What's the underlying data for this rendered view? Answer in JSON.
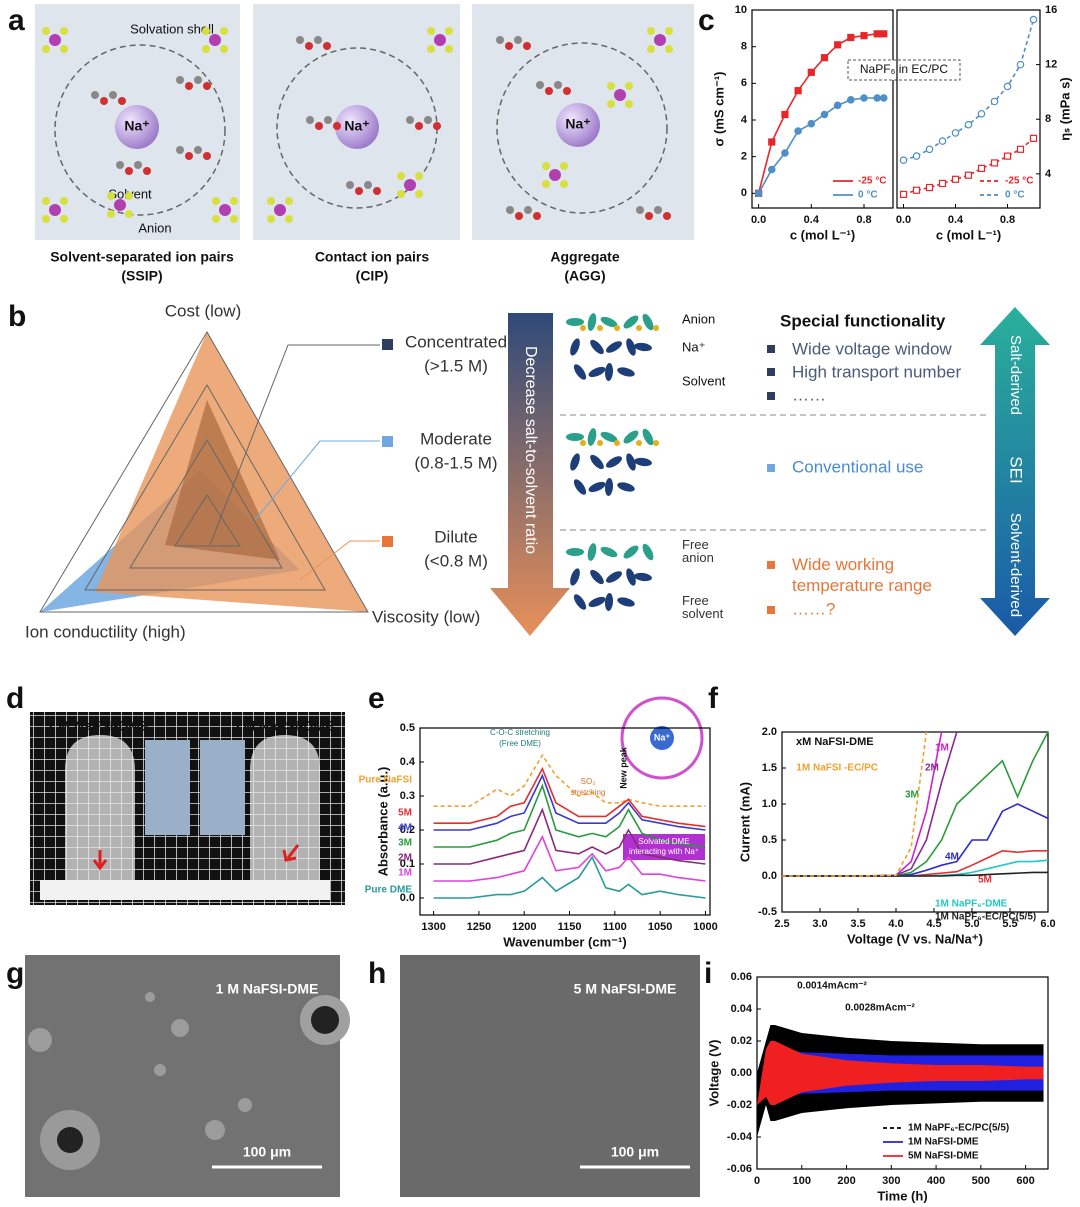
{
  "panel_a": {
    "label": "a",
    "solvation_shell": "Solvation shell",
    "solvent": "Solvent",
    "anion": "Anion",
    "cation": "Na⁺",
    "captions": [
      [
        "Solvent-separated ion pairs",
        "(SSIP)"
      ],
      [
        "Contact ion pairs",
        "(CIP)"
      ],
      [
        "Aggregate",
        "(AGG)"
      ]
    ]
  },
  "panel_b": {
    "label": "b",
    "axes": [
      "Cost (low)",
      "Ion conductility (high)",
      "Viscosity (low)"
    ],
    "levels": [
      {
        "name": "Concentrated",
        "range": "(>1.5 M)"
      },
      {
        "name": "Moderate",
        "range": "(0.8-1.5 M)"
      },
      {
        "name": "Dilute",
        "range": "(<0.8 M)"
      }
    ],
    "arrow": "Decrease salt-to-solvent ratio",
    "cluster_labels": [
      "Anion",
      "Na⁺",
      "Solvent",
      "Free anion",
      "Free solvent"
    ],
    "functionality_title": "Special functionality",
    "functionality": [
      [
        "Wide voltage window",
        "High transport number",
        "……"
      ],
      [
        "Conventional use"
      ],
      [
        "Wide working temperature range",
        "……?"
      ]
    ],
    "sei": [
      "Salt-derived",
      "SEI",
      "Solvent-derived"
    ]
  },
  "panel_d": {
    "label": "d",
    "samples": [
      "1 M NaFSI-DME",
      "5 M NaFSI-DME"
    ]
  },
  "panel_g": {
    "label": "g",
    "sample": "1 M NaFSI-DME",
    "scale": "100 μm"
  },
  "panel_h": {
    "label": "h",
    "sample": "5 M NaFSI-DME",
    "scale": "100 μm"
  },
  "chart_data": [
    {
      "type": "line",
      "panel_label": "c",
      "xlabel": "c (mol L⁻¹)",
      "ylabel": "σ (mS cm⁻¹)",
      "annotation": "NaPF₆ in EC/PC",
      "x": [
        0,
        0.1,
        0.2,
        0.3,
        0.4,
        0.5,
        0.6,
        0.7,
        0.8,
        0.9,
        0.95
      ],
      "xlim": [
        -0.05,
        1.02
      ],
      "xticks": [
        {
          "value": 0,
          "label": "0.0"
        },
        0.4,
        0.8
      ],
      "ylim": [
        -0.8,
        10
      ],
      "yticks": [
        0,
        2,
        4,
        6,
        8,
        10
      ],
      "legend": "lower right",
      "series": [
        {
          "name": "-25 °C",
          "color": "#e8262a",
          "marker": "square",
          "filled": true,
          "values": [
            0,
            2.8,
            4.3,
            5.6,
            6.6,
            7.4,
            8.1,
            8.5,
            8.6,
            8.7,
            8.7
          ]
        },
        {
          "name": "0 °C",
          "color": "#4f8fc6",
          "marker": "circle",
          "filled": true,
          "values": [
            0,
            1.3,
            2.2,
            3.4,
            3.8,
            4.3,
            4.8,
            5.1,
            5.2,
            5.2,
            5.2
          ]
        }
      ]
    },
    {
      "type": "line",
      "xlabel": "c (mol L⁻¹)",
      "y2label": "ηₛ (mPa s)",
      "x": [
        0,
        0.1,
        0.2,
        0.3,
        0.4,
        0.5,
        0.6,
        0.7,
        0.8,
        0.9,
        1.0
      ],
      "xlim": [
        -0.05,
        1.05
      ],
      "xticks": [
        {
          "value": 0,
          "label": "0.0"
        },
        0.4,
        0.8
      ],
      "y2lim": [
        1.5,
        16
      ],
      "y2ticks": [
        4,
        8,
        12,
        16
      ],
      "legend": "lower right",
      "series": [
        {
          "name": "-25 °C",
          "color": "#e8262a",
          "marker": "square",
          "filled": false,
          "dash": true,
          "axis": "y2",
          "values": [
            2.5,
            2.8,
            3.0,
            3.3,
            3.6,
            3.9,
            4.4,
            4.8,
            5.3,
            5.8,
            6.6
          ]
        },
        {
          "name": "0 °C",
          "color": "#4f8fc6",
          "marker": "circle",
          "filled": false,
          "dash": true,
          "axis": "y2",
          "values": [
            5.0,
            5.3,
            5.8,
            6.4,
            7.0,
            7.6,
            8.4,
            9.3,
            10.4,
            12.0,
            15.3
          ]
        }
      ]
    },
    {
      "type": "line",
      "panel_label": "e",
      "xlabel": "Wavenumber (cm⁻¹)",
      "ylabel": "Absorbance (a.u.)",
      "annotations": [
        "C-O-C stretching",
        "(Free DME)",
        "SO₂",
        "stretching",
        "New peak",
        "Solvated DME",
        "interacting with Na⁺",
        "Na⁺"
      ],
      "x": [
        1300,
        1260,
        1230,
        1215,
        1200,
        1180,
        1165,
        1140,
        1125,
        1110,
        1095,
        1085,
        1070,
        1050,
        1030,
        1000
      ],
      "xlim": [
        1315,
        995
      ],
      "xticks": [
        1300,
        1250,
        1200,
        1150,
        1100,
        1050,
        1000
      ],
      "ylim": [
        -0.05,
        0.5
      ],
      "yticks": [
        {
          "value": 0,
          "label": "0.0"
        },
        0.1,
        0.2,
        0.3,
        0.4,
        0.5
      ],
      "series": [
        {
          "name": "Pure NaFSI",
          "color": "#f0a030",
          "dash": true,
          "values": [
            0.27,
            0.27,
            0.32,
            0.3,
            0.33,
            0.42,
            0.36,
            0.3,
            0.31,
            0.28,
            0.28,
            0.29,
            0.28,
            0.27,
            0.27,
            0.27
          ]
        },
        {
          "name": "5M",
          "color": "#e03030",
          "values": [
            0.22,
            0.22,
            0.24,
            0.27,
            0.28,
            0.38,
            0.28,
            0.24,
            0.24,
            0.24,
            0.27,
            0.29,
            0.24,
            0.23,
            0.22,
            0.21
          ]
        },
        {
          "name": "4M",
          "color": "#3a3ad0",
          "values": [
            0.2,
            0.2,
            0.22,
            0.24,
            0.25,
            0.36,
            0.25,
            0.22,
            0.22,
            0.22,
            0.25,
            0.28,
            0.23,
            0.22,
            0.21,
            0.2
          ]
        },
        {
          "name": "3M",
          "color": "#2a9a3a",
          "values": [
            0.15,
            0.15,
            0.17,
            0.19,
            0.2,
            0.33,
            0.2,
            0.18,
            0.19,
            0.18,
            0.21,
            0.26,
            0.19,
            0.17,
            0.16,
            0.15
          ]
        },
        {
          "name": "2M",
          "color": "#8a2a7a",
          "values": [
            0.1,
            0.1,
            0.12,
            0.13,
            0.14,
            0.26,
            0.14,
            0.13,
            0.15,
            0.13,
            0.15,
            0.2,
            0.13,
            0.12,
            0.11,
            0.1
          ]
        },
        {
          "name": "1M",
          "color": "#e040e0",
          "values": [
            0.05,
            0.05,
            0.06,
            0.07,
            0.08,
            0.18,
            0.08,
            0.09,
            0.13,
            0.08,
            0.09,
            0.12,
            0.07,
            0.07,
            0.06,
            0.05
          ]
        },
        {
          "name": "Pure DME",
          "color": "#2a9a9a",
          "values": [
            0,
            0,
            0.01,
            0.01,
            0.02,
            0.06,
            0.02,
            0.06,
            0.12,
            0.03,
            0.02,
            0.04,
            0.01,
            0.02,
            0.01,
            0
          ]
        }
      ]
    },
    {
      "type": "line",
      "panel_label": "f",
      "title": "xM NaFSI-DME",
      "xlabel": "Voltage (V vs. Na/Na⁺)",
      "ylabel": "Current (mA)",
      "x": [
        2.5,
        3.0,
        3.5,
        4.0,
        4.2,
        4.4,
        4.6,
        4.8,
        5.0,
        5.2,
        5.4,
        5.6,
        5.8,
        6.0
      ],
      "xlim": [
        2.5,
        6.0
      ],
      "xticks": [
        2.5,
        {
          "value": 3,
          "label": "3.0"
        },
        3.5,
        {
          "value": 4,
          "label": "4.0"
        },
        4.5,
        {
          "value": 5,
          "label": "5.0"
        },
        5.5,
        {
          "value": 6,
          "label": "6.0"
        }
      ],
      "ylim": [
        -0.5,
        2.0
      ],
      "yticks": [
        -0.5,
        {
          "value": 0,
          "label": "0.0"
        },
        0.5,
        {
          "value": 1,
          "label": "1.0"
        },
        1.5,
        {
          "value": 2,
          "label": "2.0"
        }
      ],
      "series": [
        {
          "name": "1M",
          "color": "#d020d0",
          "values": [
            0,
            0,
            0,
            0.01,
            0.2,
            0.9,
            2.0,
            null,
            null,
            null,
            null,
            null,
            null,
            null
          ]
        },
        {
          "name": "2M",
          "color": "#8a2a9a",
          "values": [
            0,
            0,
            0,
            0.01,
            0.1,
            0.5,
            1.3,
            2.0,
            null,
            null,
            null,
            null,
            null,
            null
          ]
        },
        {
          "name": "3M",
          "color": "#2a9a3a",
          "values": [
            0,
            0,
            0,
            0,
            0.05,
            0.2,
            0.5,
            1.0,
            1.2,
            1.4,
            1.6,
            1.1,
            1.6,
            2.0
          ]
        },
        {
          "name": "4M",
          "color": "#2a2ad0",
          "values": [
            0,
            0,
            0,
            0,
            0.02,
            0.08,
            0.15,
            0.2,
            0.5,
            0.5,
            0.9,
            1.0,
            0.9,
            0.8
          ]
        },
        {
          "name": "5M",
          "color": "#e03030",
          "values": [
            0,
            0,
            0,
            0,
            0,
            0.02,
            0.04,
            0.06,
            0.15,
            0.25,
            0.35,
            0.33,
            0.35,
            0.35
          ]
        },
        {
          "name": "1M NaPF₆-DME",
          "color": "#20c8c8",
          "values": [
            0,
            0,
            0,
            0,
            0,
            0,
            0.01,
            0.02,
            0.05,
            0.1,
            0.15,
            0.2,
            0.2,
            0.22
          ]
        },
        {
          "name": "1M NaPF₆-EC/PC(5/5)",
          "color": "#222222",
          "values": [
            0,
            0,
            0,
            0,
            0,
            0,
            0,
            0.01,
            0.01,
            0.02,
            0.03,
            0.04,
            0.05,
            0.05
          ]
        },
        {
          "name": "1M NaFSI -EC/PC",
          "color": "#f0a030",
          "dash": true,
          "values": [
            0,
            0,
            0,
            0.01,
            0.4,
            2.0,
            null,
            null,
            null,
            null,
            null,
            null,
            null,
            null
          ]
        }
      ]
    },
    {
      "type": "band",
      "panel_label": "i",
      "xlabel": "Time (h)",
      "ylabel": "Voltage (V)",
      "annotations": [
        "0.0014mAcm⁻²",
        "0.0028mAcm⁻²"
      ],
      "x": [
        0,
        20,
        30,
        40,
        100,
        200,
        300,
        400,
        500,
        600,
        640
      ],
      "xlim": [
        0,
        650
      ],
      "xticks": [
        0,
        100,
        200,
        300,
        400,
        500,
        600
      ],
      "ylim": [
        -0.06,
        0.06
      ],
      "yticks": [
        -0.06,
        -0.04,
        -0.02,
        {
          "value": 0,
          "label": "0.00"
        },
        0.02,
        0.04,
        0.06
      ],
      "legend": "lower right",
      "series": [
        {
          "name": "1M NaPF₆-EC/PC(5/5)",
          "color": "#000000",
          "dash": true,
          "upper": [
            0,
            0.02,
            0.03,
            0.03,
            0.025,
            0.022,
            0.02,
            0.019,
            0.018,
            0.018,
            0.018
          ],
          "lower": [
            -0.04,
            -0.02,
            -0.03,
            -0.03,
            -0.025,
            -0.022,
            -0.02,
            -0.019,
            -0.018,
            -0.018,
            -0.018
          ]
        },
        {
          "name": "1M NaFSI-DME",
          "color": "#2020e0",
          "upper": [
            0,
            0,
            0.01,
            0.015,
            0.013,
            0.012,
            0.011,
            0.011,
            0.011,
            0.011,
            0.011
          ],
          "lower": [
            0,
            0,
            -0.01,
            -0.015,
            -0.013,
            -0.012,
            -0.011,
            -0.011,
            -0.011,
            -0.011,
            -0.011
          ]
        },
        {
          "name": "5M NaFSI-DME",
          "color": "#f02020",
          "upper": [
            -0.02,
            0.015,
            0.02,
            0.02,
            0.012,
            0.008,
            0.006,
            0.005,
            0.005,
            0.004,
            0.004
          ],
          "lower": [
            -0.02,
            -0.015,
            -0.02,
            -0.02,
            -0.012,
            -0.008,
            -0.006,
            -0.005,
            -0.005,
            -0.004,
            -0.004
          ]
        }
      ]
    }
  ]
}
